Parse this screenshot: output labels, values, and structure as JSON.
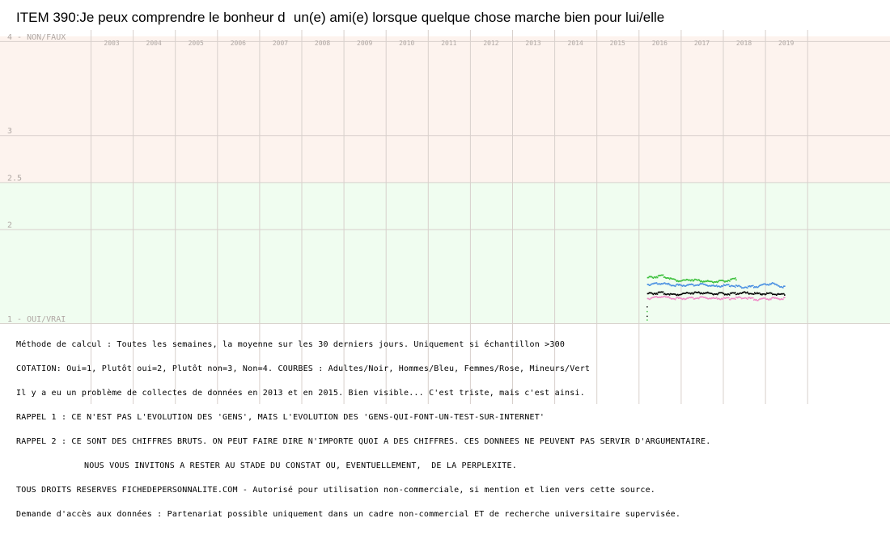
{
  "title": "ITEM 390:Je peux comprendre le bonheur dun(e) ami(e) lorsque quelque chose marche bien pour lui/elle",
  "chart_data": {
    "type": "scatter",
    "title": "ITEM 390:Je peux comprendre le bonheur dun(e) ami(e) lorsque quelque chose marche bien pour lui/elle",
    "x_ticks": [
      "2003",
      "2004",
      "2005",
      "2006",
      "2007",
      "2008",
      "2009",
      "2010",
      "2011",
      "2012",
      "2013",
      "2014",
      "2015",
      "2016",
      "2017",
      "2018",
      "2019"
    ],
    "xlim": [
      2003,
      2020
    ],
    "ylim": [
      1,
      4.05
    ],
    "y_ticks": [
      {
        "value": 4,
        "label": "4 - NON/FAUX"
      },
      {
        "value": 3,
        "label": "3"
      },
      {
        "value": 2.5,
        "label": "2.5"
      },
      {
        "value": 2,
        "label": "2"
      },
      {
        "value": 1,
        "label": "1 - OUI/VRAI"
      }
    ],
    "bands": [
      {
        "from": 2.5,
        "to": 4.05,
        "color": "#fdf3ee"
      },
      {
        "from": 1,
        "to": 2.5,
        "color": "#f0fdf0"
      }
    ],
    "grid": true,
    "series": [
      {
        "name": "Adultes",
        "color": "#000000",
        "x_start": 2016.2,
        "x_end": 2019.45,
        "values": [
          1.32,
          1.33,
          1.31,
          1.33,
          1.33,
          1.32,
          1.32,
          1.33,
          1.32,
          1.32,
          1.31
        ]
      },
      {
        "name": "Hommes",
        "color": "#4a90e2",
        "x_start": 2016.2,
        "x_end": 2019.45,
        "values": [
          1.42,
          1.43,
          1.41,
          1.41,
          1.42,
          1.4,
          1.41,
          1.39,
          1.4,
          1.43,
          1.39
        ]
      },
      {
        "name": "Femmes",
        "color": "#f08cc8",
        "x_start": 2016.2,
        "x_end": 2019.45,
        "values": [
          1.27,
          1.29,
          1.27,
          1.27,
          1.28,
          1.27,
          1.27,
          1.28,
          1.26,
          1.27,
          1.27
        ]
      },
      {
        "name": "Mineurs",
        "color": "#3cc03c",
        "x_start": 2016.2,
        "x_end": 2018.3,
        "values": [
          1.49,
          1.51,
          1.46,
          1.47,
          1.45,
          1.45,
          1.48
        ]
      }
    ]
  },
  "notes": [
    "Méthode de calcul : Toutes les semaines, la moyenne sur les 30 derniers jours. Uniquement si échantillon >300",
    "COTATION: Oui=1, Plutôt oui=2, Plutôt non=3, Non=4. COURBES : Adultes/Noir, Hommes/Bleu, Femmes/Rose, Mineurs/Vert",
    "Il y a eu un problème de collectes de données en 2013 et en 2015. Bien visible... C'est triste, mais c'est ainsi.",
    "RAPPEL 1 : CE N'EST PAS L'EVOLUTION DES 'GENS', MAIS L'EVOLUTION DES 'GENS-QUI-FONT-UN-TEST-SUR-INTERNET'",
    "RAPPEL 2 : CE SONT DES CHIFFRES BRUTS. ON PEUT FAIRE DIRE N'IMPORTE QUOI A DES CHIFFRES. CES DONNEES NE PEUVENT PAS SERVIR D'ARGUMENTAIRE.",
    "NOUS VOUS INVITONS A RESTER AU STADE DU CONSTAT OU, EVENTUELLEMENT,  DE LA PERPLEXITE.",
    "TOUS DROITS RESERVES FICHEDEPERSONNALITE.COM - Autorisé pour utilisation non-commerciale, si mention et lien vers cette source.",
    "Demande d'accès aux données : Partenariat possible uniquement dans un cadre non-commercial ET de recherche universitaire supervisée."
  ]
}
